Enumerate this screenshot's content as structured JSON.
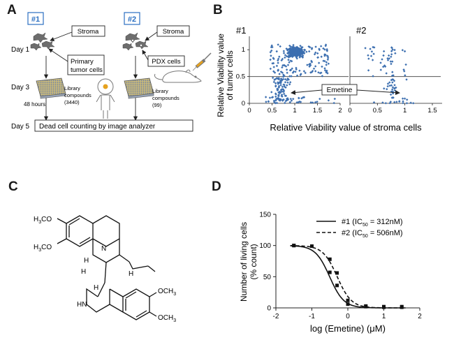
{
  "panels": {
    "a": {
      "letter": "A",
      "exp1_tag": "#1",
      "exp2_tag": "#2",
      "stroma1": "Stroma",
      "stroma2": "Stroma",
      "day1": "Day 1",
      "day3": "Day 3",
      "day5": "Day 5",
      "hours": "48 hours",
      "primary_line1": "Primary",
      "primary_line2": "tumor cells",
      "pdx": "PDX cells",
      "lib1_line1": "Library",
      "lib1_line2": "compounds",
      "lib1_line3": "(3440)",
      "lib2_line1": "Library",
      "lib2_line2": "compounds",
      "lib2_line3": "(99)",
      "dead_cell": "Dead cell counting by image analyzer"
    },
    "b": {
      "letter": "B",
      "ylabel_line1": "Relative Viability value",
      "ylabel_line2": "of tumor cells",
      "xlabel": "Relative Viability value of stroma cells",
      "emetine": "Emetine"
    },
    "c": {
      "letter": "C",
      "label_h3co_top": "H3CO",
      "label_h3co_bottom": "H3CO",
      "label_och3_top": "OCH3",
      "label_och3_bottom": "OCH3",
      "label_n": "N",
      "label_hn": "HN",
      "label_h1": "H",
      "label_h2": "H",
      "label_h3": "H",
      "label_h4": "H"
    },
    "d": {
      "letter": "D"
    }
  },
  "chart_data": [
    {
      "type": "scatter",
      "panel": "B-left",
      "title": "#1",
      "xlim": [
        0,
        2
      ],
      "ylim": [
        0,
        1.25
      ],
      "xticks": [
        "0",
        "0.5",
        "1",
        "1.5",
        "2"
      ],
      "yticks": [
        "0",
        "0.5",
        "1"
      ],
      "threshold_y": 0.5,
      "marker_color": "#3c6fb0",
      "cluster": {
        "x_center": 1.02,
        "y_center": 0.96
      },
      "annotation": {
        "text": "Emetine",
        "points_to": [
          0.88,
          0.27
        ]
      }
    },
    {
      "type": "scatter",
      "panel": "B-right",
      "title": "#2",
      "xlim": [
        0,
        1.5
      ],
      "ylim": [
        0,
        1.25
      ],
      "xticks": [
        "0",
        "0.5",
        "1",
        "1.5"
      ],
      "yticks": [],
      "threshold_y": 0.5,
      "marker_color": "#3c6fb0",
      "annotation": {
        "text": "Emetine",
        "points_to": [
          0.83,
          0.27
        ]
      }
    },
    {
      "type": "line",
      "panel": "D",
      "xlabel": "log (Emetine) (μM)",
      "ylabel_line1": "Number of living cells",
      "ylabel_line2": "(% count)",
      "xlim": [
        -2,
        2
      ],
      "ylim": [
        0,
        150
      ],
      "xticks": [
        "-2",
        "-1",
        "0",
        "1",
        "2"
      ],
      "yticks": [
        "0",
        "50",
        "100",
        "150"
      ],
      "series": [
        {
          "name": "#1 (IC50 = 312nM)",
          "ic50_nM": 312,
          "style": "solid",
          "x": [
            -1.5,
            -0.5,
            -0.3,
            0,
            0.5,
            1,
            1.5
          ],
          "y": [
            100,
            57,
            36,
            6,
            2,
            1,
            1
          ]
        },
        {
          "name": "#2 (IC50 = 506nM)",
          "ic50_nM": 506,
          "style": "dashed",
          "x": [
            -1.5,
            -1,
            -0.5,
            -0.3,
            0,
            0.5,
            1,
            1.5
          ],
          "y": [
            100,
            99,
            78,
            56,
            12,
            3,
            2,
            2
          ]
        }
      ],
      "legend": {
        "placement": "top-right",
        "entry1_prefix": "#1 (IC",
        "entry1_suffix": " = 312nM)",
        "entry2_prefix": "#2 (IC",
        "entry2_suffix": " = 506nM)",
        "subscript": "50"
      }
    }
  ]
}
